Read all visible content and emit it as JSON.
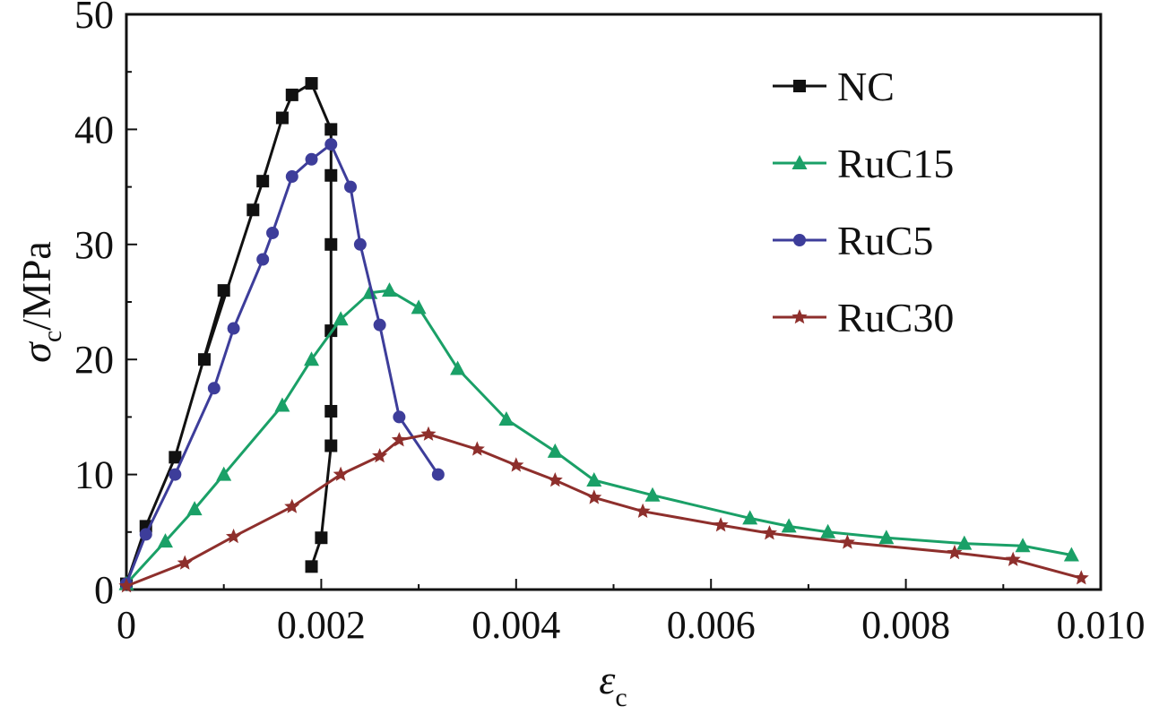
{
  "chart_data": {
    "type": "line",
    "title": "",
    "xlabel": {
      "symbol": "ε",
      "subscript": "c"
    },
    "ylabel": {
      "symbol": "σ",
      "subscript": "c",
      "unit": "/MPa"
    },
    "xlim": [
      0,
      0.01
    ],
    "ylim": [
      0,
      50
    ],
    "xticks": [
      0,
      0.002,
      0.004,
      0.006,
      0.008,
      0.01
    ],
    "xtick_labels": [
      "0",
      "0.002",
      "0.004",
      "0.006",
      "0.008",
      "0.010"
    ],
    "yticks": [
      0,
      10,
      20,
      30,
      40,
      50
    ],
    "ytick_labels": [
      "0",
      "10",
      "20",
      "30",
      "40",
      "50"
    ],
    "grid": false,
    "legend_position": "top-right",
    "series": [
      {
        "name": "NC",
        "color": "#111111",
        "marker": "square",
        "x": [
          0,
          0.0002,
          0.0005,
          0.001,
          0.0008,
          0.0013,
          0.0014,
          0.0016,
          0.0017,
          0.0019,
          0.0021,
          0.0021,
          0.0021,
          0.0021,
          0.0021,
          0.0021,
          0.002,
          0.0019
        ],
        "y": [
          0.5,
          5.5,
          11.5,
          26,
          20,
          33,
          35.5,
          41,
          43,
          44,
          40,
          36,
          30,
          22.5,
          15.5,
          12.5,
          4.5,
          2
        ]
      },
      {
        "name": "RuC15",
        "color": "#1aa067",
        "marker": "triangle",
        "x": [
          0,
          0.0004,
          0.0007,
          0.001,
          0.0016,
          0.0019,
          0.0022,
          0.0025,
          0.0027,
          0.003,
          0.0034,
          0.0039,
          0.0044,
          0.0048,
          0.0054,
          0.0064,
          0.0068,
          0.0072,
          0.0078,
          0.0086,
          0.0092,
          0.0097
        ],
        "y": [
          0.5,
          4.2,
          7,
          10,
          16,
          20,
          23.5,
          25.8,
          26,
          24.5,
          19.2,
          14.8,
          12,
          9.5,
          8.2,
          6.2,
          5.5,
          5,
          4.5,
          4,
          3.8,
          3
        ]
      },
      {
        "name": "RuC5",
        "color": "#3d3d9a",
        "marker": "circle",
        "x": [
          0,
          0.0002,
          0.0005,
          0.0009,
          0.0011,
          0.0014,
          0.0015,
          0.0017,
          0.0019,
          0.0021,
          0.0023,
          0.0024,
          0.0026,
          0.0028,
          0.0032
        ],
        "y": [
          0.5,
          4.8,
          10,
          17.5,
          22.7,
          28.7,
          31,
          35.9,
          37.4,
          38.7,
          35,
          30,
          23,
          15,
          10
        ]
      },
      {
        "name": "RuC30",
        "color": "#8e2f2c",
        "marker": "star",
        "x": [
          0,
          0.0006,
          0.0011,
          0.0017,
          0.0022,
          0.0026,
          0.0028,
          0.0031,
          0.0036,
          0.004,
          0.0044,
          0.0048,
          0.0053,
          0.0061,
          0.0066,
          0.0074,
          0.0085,
          0.0091,
          0.0098
        ],
        "y": [
          0.3,
          2.3,
          4.6,
          7.2,
          10,
          11.6,
          13,
          13.5,
          12.2,
          10.8,
          9.5,
          8,
          6.8,
          5.6,
          4.9,
          4.1,
          3.2,
          2.6,
          1
        ]
      }
    ]
  }
}
